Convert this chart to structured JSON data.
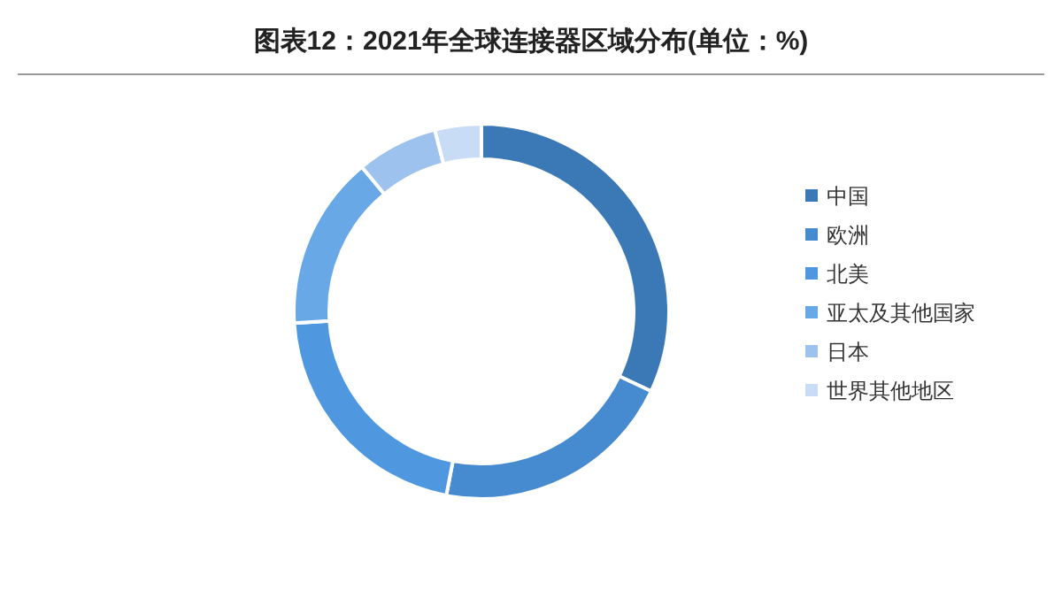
{
  "chart_data": {
    "type": "donut",
    "title": "图表12：2021年全球连接器区域分布(单位：%)",
    "categories": [
      "中国",
      "欧洲",
      "北美",
      "亚太及其他国家",
      "日本",
      "世界其他地区"
    ],
    "values": [
      32,
      21,
      21,
      15,
      7,
      4
    ],
    "colors": [
      "#3b78b6",
      "#468ad0",
      "#4f98e0",
      "#68a8e6",
      "#9dc2ee",
      "#c8dcf6"
    ],
    "legend": "right"
  }
}
